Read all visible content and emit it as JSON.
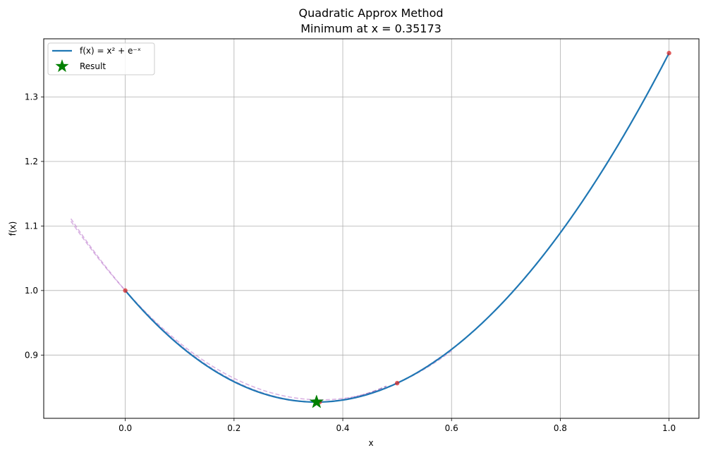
{
  "chart_data": {
    "type": "line",
    "title": "Quadratic Approx Method",
    "subtitle": "Minimum at x = 0.35173",
    "xlabel": "x",
    "ylabel": "f(x)",
    "xlim": [
      -0.15,
      1.055
    ],
    "ylim": [
      0.802,
      1.39
    ],
    "xticks": [
      0.0,
      0.2,
      0.4,
      0.6,
      0.8,
      1.0
    ],
    "xtick_labels": [
      "0.0",
      "0.2",
      "0.4",
      "0.6",
      "0.8",
      "1.0"
    ],
    "yticks": [
      0.9,
      1.0,
      1.1,
      1.2,
      1.3
    ],
    "ytick_labels": [
      "0.9",
      "1.0",
      "1.1",
      "1.2",
      "1.3"
    ],
    "grid": true,
    "legend_position": "top-left",
    "function_series": {
      "name": "f(x) = x² + e⁻ˣ",
      "color": "#1f77b4",
      "x_range": [
        0.0,
        1.0
      ]
    },
    "approx_parabolas": [
      {
        "points": [
          [
            0.0,
            1.0
          ],
          [
            0.5,
            0.8565
          ],
          [
            1.0,
            1.3679
          ]
        ],
        "x_range": [
          -0.1,
          0.6
        ],
        "color": "#c080d0"
      },
      {
        "points": [
          [
            0.0,
            1.0
          ],
          [
            0.3575,
            0.8273
          ],
          [
            0.5,
            0.8565
          ]
        ],
        "x_range": [
          -0.1,
          0.58
        ],
        "color": "#c080d0"
      },
      {
        "points": [
          [
            0.0,
            1.0
          ],
          [
            0.352,
            0.8272
          ],
          [
            0.3575,
            0.8273
          ]
        ],
        "x_range": [
          0.0,
          0.48
        ],
        "color": "#7030a0"
      }
    ],
    "iteration_points": {
      "color": "#d62728",
      "x": [
        0.0,
        0.5,
        1.0,
        0.3575,
        0.352
      ],
      "y": [
        1.0,
        0.8565,
        1.3679,
        0.8273,
        0.8272
      ]
    },
    "result": {
      "name": "Result",
      "x": 0.35173,
      "y": 0.8272,
      "color": "#008000",
      "marker": "star"
    }
  }
}
